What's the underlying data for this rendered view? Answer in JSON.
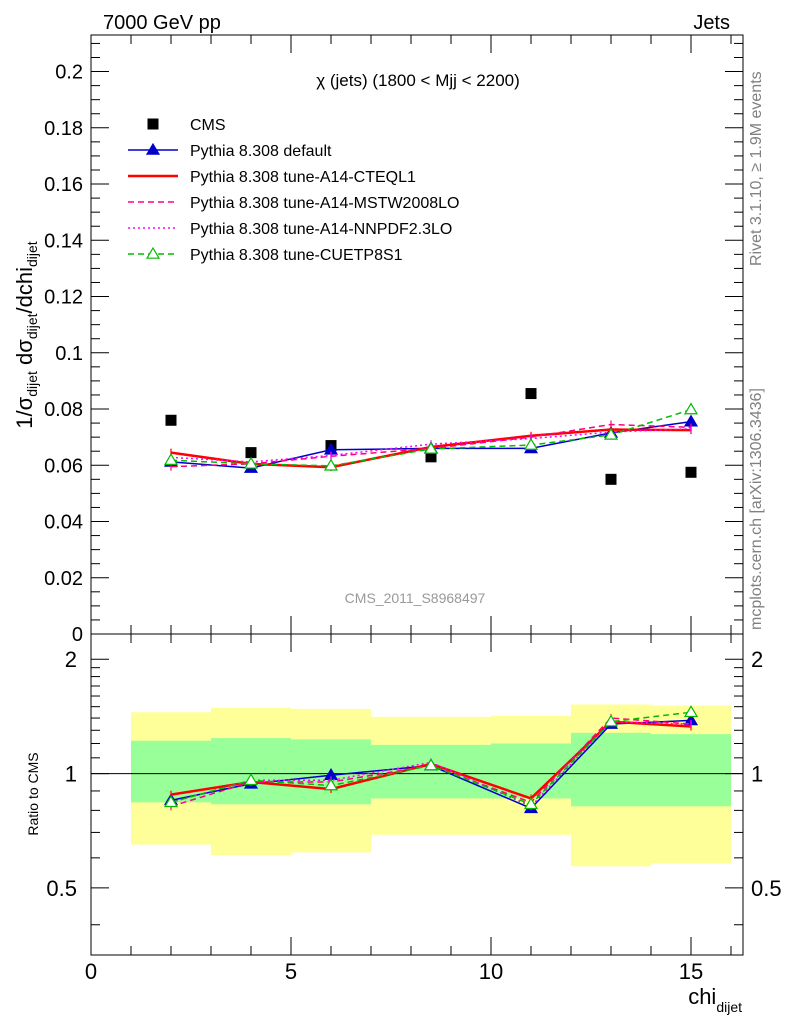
{
  "header": {
    "energy": "7000 GeV pp",
    "category": "Jets",
    "rivet": "Rivet 3.1.10, ≥ 1.9M events",
    "source": "mcplots.cern.ch [arXiv:1306.3436]",
    "analysis": "CMS_2011_S8968497"
  },
  "axes": {
    "ylabel_main": "1/σ_dijet dσ_dijet/dchi_dijet",
    "ylabel_ratio": "Ratio to CMS",
    "xlabel": "chi_dijet",
    "xlabel_base": "chi",
    "xlabel_sub": "dijet"
  },
  "chart_data": [
    {
      "type": "line",
      "title": "χ (jets) (1800 < Mjj < 2200)",
      "xlim": [
        0,
        16.3
      ],
      "ylim": [
        0,
        0.213
      ],
      "yticks": [
        0,
        0.02,
        0.04,
        0.06,
        0.08,
        0.1,
        0.12,
        0.14,
        0.16,
        0.18,
        0.2
      ],
      "ytick_labels": [
        "0",
        "0.02",
        "0.04",
        "0.06",
        "0.08",
        "0.1",
        "0.12",
        "0.14",
        "0.16",
        "0.18",
        "0.2"
      ],
      "legend_placement": "top-left",
      "data_points": {
        "name": "CMS",
        "color": "#000000",
        "x": [
          2,
          4,
          6,
          8.5,
          11,
          13,
          15
        ],
        "y": [
          0.076,
          0.0645,
          0.067,
          0.063,
          0.0855,
          0.055,
          0.0575
        ]
      },
      "bins": [
        [
          1,
          3
        ],
        [
          3,
          5
        ],
        [
          5,
          7
        ],
        [
          7,
          10
        ],
        [
          10,
          12
        ],
        [
          12,
          14
        ],
        [
          14,
          16
        ]
      ],
      "series": [
        {
          "name": "Pythia 8.308 default",
          "color": "#0000cc",
          "style": "solid",
          "marker": "filled-triangle",
          "x": [
            2,
            4,
            6,
            8.5,
            11,
            13,
            15
          ],
          "y": [
            0.0612,
            0.059,
            0.0655,
            0.066,
            0.066,
            0.0715,
            0.0755
          ]
        },
        {
          "name": "Pythia 8.308 tune-A14-CTEQL1",
          "color": "#ff0000",
          "style": "solid-thick",
          "marker": "none",
          "x": [
            2,
            4,
            6,
            8.5,
            11,
            13,
            15
          ],
          "y": [
            0.0645,
            0.0605,
            0.0593,
            0.0665,
            0.0705,
            0.0727,
            0.0725
          ]
        },
        {
          "name": "Pythia 8.308 tune-A14-MSTW2008LO",
          "color": "#ff007f",
          "style": "dashed",
          "marker": "none",
          "x": [
            2,
            4,
            6,
            8.5,
            11,
            13,
            15
          ],
          "y": [
            0.0595,
            0.0605,
            0.0632,
            0.066,
            0.07,
            0.0745,
            0.0735
          ]
        },
        {
          "name": "Pythia 8.308 tune-A14-NNPDF2.3LO",
          "color": "#ff00ff",
          "style": "dotted",
          "marker": "none",
          "x": [
            2,
            4,
            6,
            8.5,
            11,
            13,
            15
          ],
          "y": [
            0.0628,
            0.0612,
            0.0635,
            0.0675,
            0.0695,
            0.0718,
            0.073
          ]
        },
        {
          "name": "Pythia 8.308 tune-CUETP8S1",
          "color": "#00bb00",
          "style": "dashed",
          "marker": "open-triangle",
          "x": [
            2,
            4,
            6,
            8.5,
            11,
            13,
            15
          ],
          "y": [
            0.0618,
            0.0605,
            0.0598,
            0.0658,
            0.0672,
            0.0708,
            0.0798
          ]
        }
      ]
    },
    {
      "type": "line",
      "ylabel": "Ratio to CMS",
      "xlabel": "chi_dijet",
      "xlim": [
        0,
        16.3
      ],
      "ylim": [
        0.333,
        2.33
      ],
      "yscale": "log",
      "yticks": [
        0.5,
        1,
        2
      ],
      "ytick_labels": [
        "0.5",
        "1",
        "2"
      ],
      "xticks": [
        0,
        5,
        10,
        15
      ],
      "xtick_labels": [
        "0",
        "5",
        "10",
        "15"
      ],
      "bins": [
        [
          1,
          3
        ],
        [
          3,
          5
        ],
        [
          5,
          7
        ],
        [
          7,
          10
        ],
        [
          10,
          12
        ],
        [
          12,
          14
        ],
        [
          14,
          16
        ]
      ],
      "band_inner": [
        [
          0.84,
          1.22
        ],
        [
          0.83,
          1.24
        ],
        [
          0.83,
          1.23
        ],
        [
          0.86,
          1.19
        ],
        [
          0.86,
          1.2
        ],
        [
          0.82,
          1.28
        ],
        [
          0.82,
          1.27
        ]
      ],
      "band_outer": [
        [
          0.65,
          1.45
        ],
        [
          0.61,
          1.49
        ],
        [
          0.62,
          1.48
        ],
        [
          0.69,
          1.41
        ],
        [
          0.69,
          1.42
        ],
        [
          0.57,
          1.52
        ],
        [
          0.58,
          1.51
        ]
      ],
      "series": [
        {
          "name": "Pythia 8.308 default",
          "color": "#0000cc",
          "style": "solid",
          "marker": "filled-triangle",
          "x": [
            2,
            4,
            6,
            8.5,
            11,
            13,
            15
          ],
          "y": [
            0.85,
            0.94,
            0.99,
            1.05,
            0.81,
            1.35,
            1.38
          ]
        },
        {
          "name": "Pythia 8.308 tune-A14-CTEQL1",
          "color": "#ff0000",
          "style": "solid-thick",
          "marker": "none",
          "x": [
            2,
            4,
            6,
            8.5,
            11,
            13,
            15
          ],
          "y": [
            0.88,
            0.95,
            0.91,
            1.06,
            0.86,
            1.37,
            1.33
          ]
        },
        {
          "name": "Pythia 8.308 tune-A14-MSTW2008LO",
          "color": "#ff007f",
          "style": "dashed",
          "marker": "none",
          "x": [
            2,
            4,
            6,
            8.5,
            11,
            13,
            15
          ],
          "y": [
            0.82,
            0.95,
            0.95,
            1.05,
            0.84,
            1.4,
            1.35
          ]
        },
        {
          "name": "Pythia 8.308 tune-A14-NNPDF2.3LO",
          "color": "#ff00ff",
          "style": "dotted",
          "marker": "none",
          "x": [
            2,
            4,
            6,
            8.5,
            11,
            13,
            15
          ],
          "y": [
            0.84,
            0.96,
            0.96,
            1.07,
            0.82,
            1.37,
            1.35
          ]
        },
        {
          "name": "Pythia 8.308 tune-CUETP8S1",
          "color": "#00bb00",
          "style": "dashed",
          "marker": "open-triangle",
          "x": [
            2,
            4,
            6,
            8.5,
            11,
            13,
            15
          ],
          "y": [
            0.84,
            0.96,
            0.93,
            1.05,
            0.83,
            1.37,
            1.45
          ]
        }
      ]
    }
  ]
}
